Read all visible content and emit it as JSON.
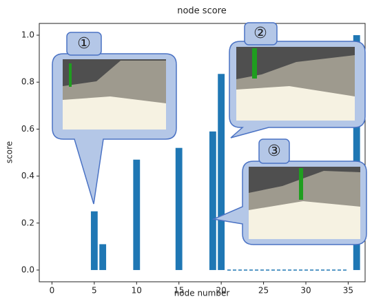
{
  "chart_data": {
    "type": "bar",
    "title": "node score",
    "xlabel": "node number",
    "ylabel": "score",
    "x": [
      5,
      6,
      10,
      15,
      19,
      20,
      36
    ],
    "values": [
      0.25,
      0.11,
      0.47,
      0.52,
      0.59,
      0.835,
      1.0
    ],
    "color": "#1f77b4",
    "xlim": [
      -1.5,
      37
    ],
    "xticks": [
      0,
      5,
      10,
      15,
      20,
      25,
      30,
      35
    ],
    "ylim": [
      -0.05,
      1.05
    ],
    "yticks": [
      {
        "value": 0,
        "label": "0.0"
      },
      {
        "value": 0.2,
        "label": "0.2"
      },
      {
        "value": 0.4,
        "label": "0.4"
      },
      {
        "value": 0.6,
        "label": "0.6"
      },
      {
        "value": 0.8,
        "label": "0.8"
      },
      {
        "value": 1,
        "label": "1.0"
      }
    ],
    "annotations": [
      "①",
      "②",
      "③"
    ]
  }
}
